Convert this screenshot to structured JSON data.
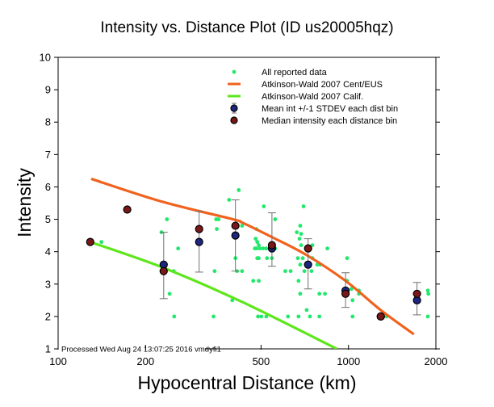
{
  "chart_data": {
    "type": "scatter",
    "title": "Intensity vs. Distance Plot (ID us20005hqz)",
    "xlabel": "Hypocentral Distance (km)",
    "ylabel": "Intensity",
    "xscale": "log",
    "xlim": [
      100,
      2000
    ],
    "ylim": [
      1,
      10
    ],
    "xticks": [
      100,
      200,
      500,
      1000,
      2000
    ],
    "xtick_labels": [
      "100",
      "200",
      "500",
      "1000",
      "2000"
    ],
    "yticks": [
      1,
      2,
      3,
      4,
      5,
      6,
      7,
      8,
      9,
      10
    ],
    "ytick_labels": [
      "1",
      "2",
      "3",
      "4",
      "5",
      "6",
      "7",
      "8",
      "9",
      "10"
    ],
    "grid": false,
    "legend_position": "top-right",
    "annotation": "Processed Wed Aug 24 13:07:25 2016 vmdyfi1",
    "colors": {
      "reported": "#22e86c",
      "cent_eus": "#f0621e",
      "calif": "#5ee61c",
      "mean": "#1c2580",
      "median": "#7a1818",
      "errorbar": "#707070"
    },
    "legend": [
      {
        "label": "All reported data",
        "kind": "dot",
        "color_key": "reported"
      },
      {
        "label": "Atkinson-Wald 2007 Cent/EUS",
        "kind": "line",
        "color_key": "cent_eus"
      },
      {
        "label": "Atkinson-Wald 2007 Calif.",
        "kind": "line",
        "color_key": "calif"
      },
      {
        "label": "Mean int +/-1 STDEV each dist bin",
        "kind": "mean",
        "color_key": "mean"
      },
      {
        "label": "Median intensity each distance bin",
        "kind": "median",
        "color_key": "median"
      }
    ],
    "series": [
      {
        "name": "All reported data",
        "type": "scatter",
        "points": [
          [
            141,
            4.3
          ],
          [
            227,
            4.6
          ],
          [
            237,
            5.0
          ],
          [
            259,
            4.1
          ],
          [
            227,
            3.4
          ],
          [
            250,
            3.4
          ],
          [
            242,
            2.7
          ],
          [
            251,
            2.0
          ],
          [
            350,
            5.0
          ],
          [
            352,
            4.7
          ],
          [
            346,
            3.4
          ],
          [
            343,
            2.0
          ],
          [
            419,
            5.9
          ],
          [
            388,
            5.6
          ],
          [
            357,
            5.0
          ],
          [
            430,
            4.8
          ],
          [
            408,
            3.8
          ],
          [
            398,
            2.5
          ],
          [
            430,
            3.4
          ],
          [
            413,
            3.4
          ],
          [
            511,
            5.4
          ],
          [
            482,
            4.7
          ],
          [
            479,
            4.4
          ],
          [
            485,
            4.3
          ],
          [
            491,
            4.2
          ],
          [
            476,
            4.1
          ],
          [
            482,
            4.1
          ],
          [
            495,
            4.1
          ],
          [
            508,
            4.1
          ],
          [
            521,
            4.1
          ],
          [
            559,
            4.1
          ],
          [
            485,
            3.8
          ],
          [
            491,
            3.8
          ],
          [
            524,
            3.8
          ],
          [
            545,
            3.8
          ],
          [
            470,
            3.1
          ],
          [
            491,
            3.1
          ],
          [
            488,
            2.0
          ],
          [
            501,
            2.0
          ],
          [
            521,
            2.0
          ],
          [
            559,
            5.0
          ],
          [
            606,
            3.4
          ],
          [
            632,
            3.4
          ],
          [
            619,
            2.0
          ],
          [
            700,
            5.4
          ],
          [
            682,
            4.8
          ],
          [
            664,
            4.6
          ],
          [
            687,
            4.55
          ],
          [
            678,
            4.4
          ],
          [
            687,
            4.2
          ],
          [
            751,
            4.2
          ],
          [
            669,
            3.8
          ],
          [
            696,
            3.8
          ],
          [
            751,
            3.8
          ],
          [
            682,
            3.6
          ],
          [
            781,
            3.6
          ],
          [
            705,
            3.4
          ],
          [
            746,
            3.4
          ],
          [
            673,
            3.1
          ],
          [
            682,
            2.7
          ],
          [
            794,
            2.7
          ],
          [
            718,
            2.2
          ],
          [
            673,
            2.0
          ],
          [
            737,
            2.0
          ],
          [
            794,
            2.0
          ],
          [
            846,
            4.1
          ],
          [
            799,
            3.6
          ],
          [
            830,
            2.7
          ],
          [
            989,
            3.8
          ],
          [
            989,
            3.1
          ],
          [
            1024,
            2.85
          ],
          [
            1086,
            2.8
          ],
          [
            1086,
            2.7
          ],
          [
            1033,
            2.5
          ],
          [
            1033,
            2.0
          ],
          [
            1351,
            2.0
          ],
          [
            1876,
            2.8
          ],
          [
            1884,
            2.7
          ],
          [
            1876,
            2.0
          ]
        ]
      },
      {
        "name": "Atkinson-Wald 2007 Cent/EUS",
        "type": "line",
        "points": [
          [
            130,
            6.25
          ],
          [
            227,
            5.55
          ],
          [
            400,
            5.0
          ],
          [
            430,
            4.9
          ],
          [
            545,
            4.45
          ],
          [
            716,
            3.9
          ],
          [
            977,
            3.1
          ],
          [
            1290,
            2.2
          ],
          [
            1680,
            1.45
          ]
        ]
      },
      {
        "name": "Atkinson-Wald 2007 Calif.",
        "type": "line",
        "points": [
          [
            129,
            4.3
          ],
          [
            231,
            3.5
          ],
          [
            430,
            2.45
          ],
          [
            912,
            1.0
          ]
        ]
      },
      {
        "name": "Mean int +/-1 STDEV each dist bin",
        "type": "errorbar",
        "points": [
          {
            "x": 231,
            "y": 3.6,
            "low": 2.55,
            "high": 4.6
          },
          {
            "x": 306,
            "y": 4.3,
            "low": 3.37,
            "high": 5.25
          },
          {
            "x": 408,
            "y": 4.5,
            "low": 3.4,
            "high": 5.6
          },
          {
            "x": 545,
            "y": 4.1,
            "low": 3.55,
            "high": 5.2
          },
          {
            "x": 726,
            "y": 3.6,
            "low": 2.85,
            "high": 4.4
          },
          {
            "x": 977,
            "y": 2.8,
            "low": 2.28,
            "high": 3.35
          },
          {
            "x": 1292,
            "y": 2.0,
            "low": 2.0,
            "high": 2.0
          },
          {
            "x": 1722,
            "y": 2.5,
            "low": 2.05,
            "high": 3.05
          }
        ]
      },
      {
        "name": "Median intensity each distance bin",
        "type": "scatter",
        "points": [
          [
            129,
            4.3
          ],
          [
            173,
            5.3
          ],
          [
            231,
            3.4
          ],
          [
            306,
            4.7
          ],
          [
            408,
            4.8
          ],
          [
            545,
            4.2
          ],
          [
            726,
            4.1
          ],
          [
            977,
            2.7
          ],
          [
            1292,
            2.0
          ],
          [
            1722,
            2.7
          ]
        ]
      }
    ]
  }
}
